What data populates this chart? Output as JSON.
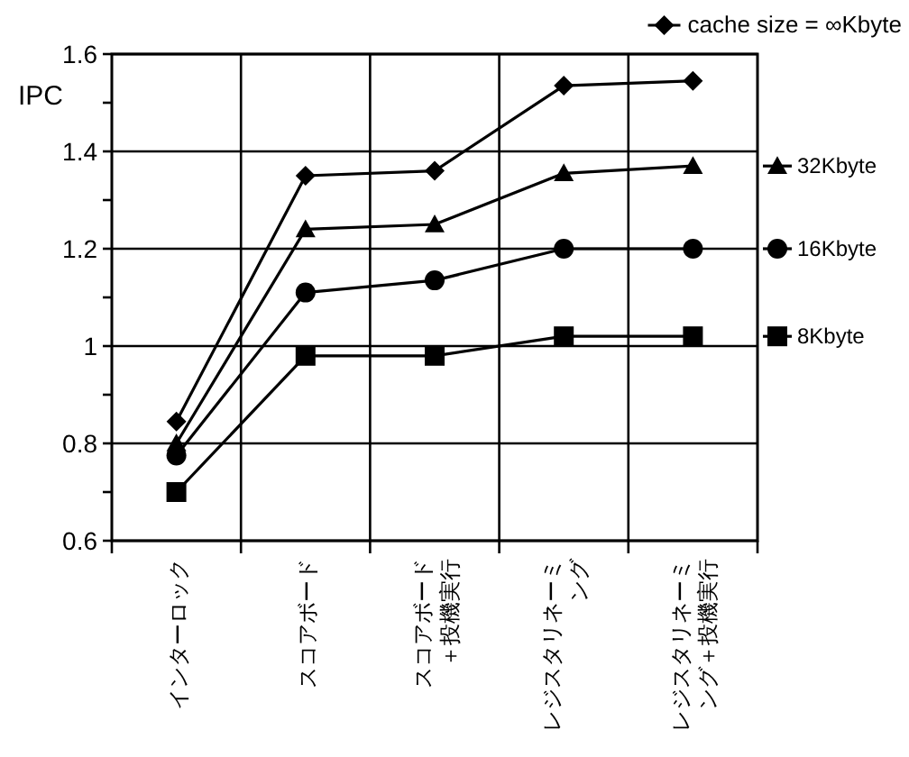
{
  "chart_data": {
    "type": "line",
    "ylabel": "IPC",
    "categories": [
      "インターロック",
      "スコアボード",
      "スコアボード＋投機実行",
      "レジスタリネーミング",
      "レジスタリネーミング＋投機実行"
    ],
    "series": [
      {
        "name": "cache size = ∞Kbyte",
        "color": "#000000",
        "marker": "diamond",
        "values": [
          0.845,
          1.35,
          1.36,
          1.535,
          1.545
        ]
      },
      {
        "name": "32Kbyte",
        "color": "#000000",
        "marker": "triangle",
        "values": [
          0.8,
          1.24,
          1.25,
          1.355,
          1.37
        ]
      },
      {
        "name": "16Kbyte",
        "color": "#000000",
        "marker": "circle",
        "values": [
          0.775,
          1.11,
          1.135,
          1.2,
          1.2
        ]
      },
      {
        "name": "8Kbyte",
        "color": "#000000",
        "marker": "square",
        "values": [
          0.7,
          0.98,
          0.98,
          1.02,
          1.02
        ]
      }
    ],
    "ylim": [
      0.6,
      1.6
    ],
    "yticks": [
      0.6,
      {
        "value": 0.7,
        "label": null
      },
      0.8,
      {
        "value": 0.9,
        "label": null
      },
      1,
      {
        "value": 1.1,
        "label": null
      },
      1.2,
      {
        "value": 1.3,
        "label": null
      },
      1.4,
      {
        "value": 1.5,
        "label": null
      },
      1.6
    ],
    "grid": true,
    "legend": "right",
    "line_style": "solid"
  }
}
